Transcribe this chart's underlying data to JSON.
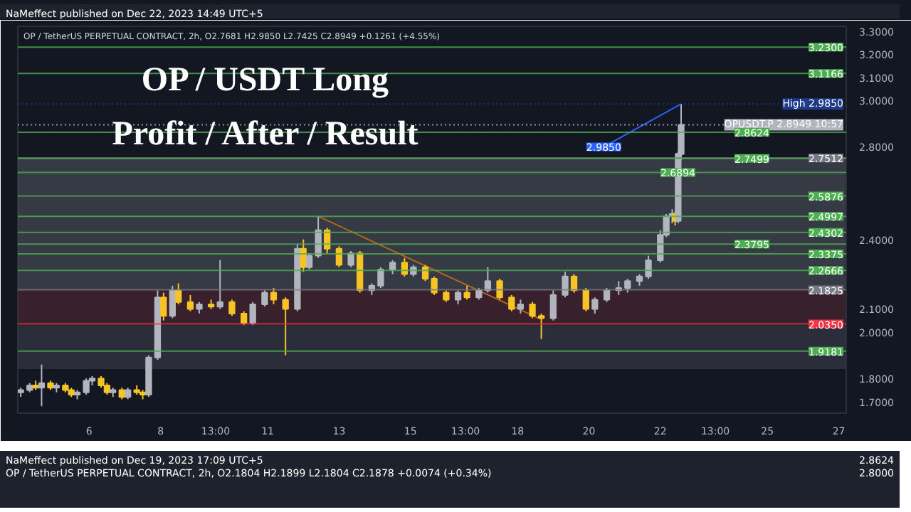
{
  "chart_data": {
    "type": "candlestick",
    "title": "OP / USDT Long",
    "subtitle": "Profit / After / Result",
    "x": [
      "2023-12-04T02:00",
      "2023-12-04T08:00",
      "2023-12-04T12:00",
      "2023-12-04T16:00",
      "2023-12-04T22:00",
      "2023-12-05T02:00",
      "2023-12-05T08:00",
      "2023-12-05T12:00",
      "2023-12-05T16:00",
      "2023-12-05T22:00",
      "2023-12-06T02:00",
      "2023-12-06T08:00",
      "2023-12-06T12:00",
      "2023-12-06T16:00",
      "2023-12-06T22:00",
      "2023-12-07T02:00",
      "2023-12-07T08:00",
      "2023-12-07T12:00",
      "2023-12-07T16:00",
      "2023-12-07T22:00",
      "2023-12-08T02:00",
      "2023-12-08T08:00",
      "2023-12-08T12:00",
      "2023-12-08T20:00",
      "2023-12-09T02:00",
      "2023-12-09T10:00",
      "2023-12-09T16:00",
      "2023-12-10T00:00",
      "2023-12-10T08:00",
      "2023-12-10T14:00",
      "2023-12-10T22:00",
      "2023-12-11T04:00",
      "2023-12-11T12:00",
      "2023-12-11T20:00",
      "2023-12-12T00:00",
      "2023-12-12T04:00",
      "2023-12-12T10:00",
      "2023-12-12T16:00",
      "2023-12-13T00:00",
      "2023-12-13T08:00",
      "2023-12-13T14:00",
      "2023-12-13T22:00",
      "2023-12-14T04:00",
      "2023-12-14T12:00",
      "2023-12-14T20:00",
      "2023-12-15T02:00",
      "2023-12-15T10:00",
      "2023-12-15T16:00",
      "2023-12-16T00:00",
      "2023-12-16T08:00",
      "2023-12-16T14:00",
      "2023-12-16T22:00",
      "2023-12-17T04:00",
      "2023-12-17T12:00",
      "2023-12-17T20:00",
      "2023-12-18T02:00",
      "2023-12-18T10:00",
      "2023-12-18T16:00",
      "2023-12-19T00:00",
      "2023-12-19T08:00",
      "2023-12-19T14:00",
      "2023-12-19T22:00",
      "2023-12-20T04:00",
      "2023-12-20T12:00",
      "2023-12-20T20:00",
      "2023-12-21T02:00",
      "2023-12-21T10:00",
      "2023-12-21T16:00",
      "2023-12-22T00:00",
      "2023-12-22T04:00",
      "2023-12-22T08:00",
      "2023-12-22T10:00",
      "2023-12-22T12:00",
      "2023-12-22T14:00"
    ],
    "ohlc": [
      [
        1.74,
        1.76,
        1.72,
        1.75
      ],
      [
        1.75,
        1.78,
        1.74,
        1.77
      ],
      [
        1.77,
        1.79,
        1.75,
        1.76
      ],
      [
        1.76,
        1.86,
        1.68,
        1.78
      ],
      [
        1.78,
        1.79,
        1.75,
        1.76
      ],
      [
        1.76,
        1.78,
        1.74,
        1.77
      ],
      [
        1.77,
        1.78,
        1.74,
        1.75
      ],
      [
        1.75,
        1.76,
        1.72,
        1.73
      ],
      [
        1.73,
        1.75,
        1.71,
        1.74
      ],
      [
        1.74,
        1.8,
        1.73,
        1.79
      ],
      [
        1.79,
        1.81,
        1.77,
        1.8
      ],
      [
        1.8,
        1.81,
        1.76,
        1.77
      ],
      [
        1.77,
        1.78,
        1.73,
        1.74
      ],
      [
        1.74,
        1.76,
        1.72,
        1.75
      ],
      [
        1.75,
        1.76,
        1.71,
        1.72
      ],
      [
        1.72,
        1.76,
        1.71,
        1.75
      ],
      [
        1.75,
        1.77,
        1.73,
        1.74
      ],
      [
        1.74,
        1.75,
        1.71,
        1.73
      ],
      [
        1.73,
        1.9,
        1.72,
        1.89
      ],
      [
        1.89,
        2.18,
        1.88,
        2.15
      ],
      [
        2.15,
        2.17,
        2.05,
        2.07
      ],
      [
        2.07,
        2.2,
        2.06,
        2.18
      ],
      [
        2.18,
        2.21,
        2.12,
        2.13
      ],
      [
        2.13,
        2.16,
        2.09,
        2.1
      ],
      [
        2.1,
        2.13,
        2.08,
        2.12
      ],
      [
        2.12,
        2.14,
        2.1,
        2.11
      ],
      [
        2.11,
        2.31,
        2.1,
        2.13
      ],
      [
        2.13,
        2.14,
        2.07,
        2.08
      ],
      [
        2.08,
        2.09,
        2.03,
        2.04
      ],
      [
        2.04,
        2.13,
        2.03,
        2.12
      ],
      [
        2.12,
        2.18,
        2.11,
        2.17
      ],
      [
        2.17,
        2.19,
        2.12,
        2.14
      ],
      [
        2.14,
        2.15,
        1.9,
        2.1
      ],
      [
        2.1,
        2.38,
        2.09,
        2.36
      ],
      [
        2.36,
        2.4,
        2.26,
        2.28
      ],
      [
        2.28,
        2.34,
        2.27,
        2.33
      ],
      [
        2.33,
        2.5,
        2.32,
        2.44
      ],
      [
        2.44,
        2.45,
        2.34,
        2.36
      ],
      [
        2.36,
        2.37,
        2.28,
        2.29
      ],
      [
        2.29,
        2.35,
        2.28,
        2.34
      ],
      [
        2.34,
        2.35,
        2.17,
        2.18
      ],
      [
        2.18,
        2.21,
        2.16,
        2.2
      ],
      [
        2.2,
        2.28,
        2.19,
        2.27
      ],
      [
        2.27,
        2.31,
        2.25,
        2.3
      ],
      [
        2.3,
        2.32,
        2.24,
        2.25
      ],
      [
        2.25,
        2.29,
        2.24,
        2.28
      ],
      [
        2.28,
        2.29,
        2.22,
        2.23
      ],
      [
        2.23,
        2.24,
        2.16,
        2.17
      ],
      [
        2.17,
        2.18,
        2.13,
        2.14
      ],
      [
        2.14,
        2.18,
        2.12,
        2.17
      ],
      [
        2.17,
        2.2,
        2.14,
        2.15
      ],
      [
        2.15,
        2.19,
        2.14,
        2.18
      ],
      [
        2.18,
        2.28,
        2.17,
        2.22
      ],
      [
        2.22,
        2.23,
        2.14,
        2.15
      ],
      [
        2.15,
        2.16,
        2.09,
        2.1
      ],
      [
        2.1,
        2.14,
        2.08,
        2.12
      ],
      [
        2.12,
        2.13,
        2.06,
        2.07
      ],
      [
        2.07,
        2.08,
        1.97,
        2.06
      ],
      [
        2.06,
        2.18,
        2.05,
        2.16
      ],
      [
        2.16,
        2.26,
        2.15,
        2.24
      ],
      [
        2.24,
        2.25,
        2.17,
        2.18
      ],
      [
        2.18,
        2.19,
        2.09,
        2.1
      ],
      [
        2.1,
        2.15,
        2.08,
        2.14
      ],
      [
        2.14,
        2.19,
        2.13,
        2.18
      ],
      [
        2.18,
        2.22,
        2.16,
        2.19
      ],
      [
        2.19,
        2.23,
        2.17,
        2.22
      ],
      [
        2.22,
        2.25,
        2.2,
        2.24
      ],
      [
        2.24,
        2.33,
        2.23,
        2.31
      ],
      [
        2.31,
        2.44,
        2.3,
        2.42
      ],
      [
        2.42,
        2.51,
        2.41,
        2.5
      ],
      [
        2.5,
        2.53,
        2.47,
        2.51
      ],
      [
        2.51,
        2.52,
        2.46,
        2.48
      ],
      [
        2.48,
        2.78,
        2.47,
        2.77
      ],
      [
        2.7681,
        2.985,
        2.7425,
        2.8949
      ]
    ],
    "series": [
      {
        "type": "line",
        "x": [
          "2023-12-12T10:00",
          "2023-12-18T14:00"
        ],
        "values": [
          2.5,
          2.06
        ],
        "color": "#b5651d"
      },
      {
        "type": "line",
        "x": [
          "2023-12-20T10:00",
          "2023-12-22T14:00"
        ],
        "values": [
          2.8,
          2.985
        ],
        "color": "#2962ff"
      }
    ],
    "xlim": [
      "2023-12-04T00:00",
      "2023-12-27T05:00"
    ],
    "ylim": [
      1.65,
      3.32
    ],
    "xticks": [
      {
        "value": "2023-12-06",
        "label": "6"
      },
      {
        "value": "2023-12-08",
        "label": "8"
      },
      {
        "value": "2023-12-09T13:00",
        "label": "13:00"
      },
      {
        "value": "2023-12-11",
        "label": "11"
      },
      {
        "value": "2023-12-13",
        "label": "13"
      },
      {
        "value": "2023-12-15",
        "label": "15"
      },
      {
        "value": "2023-12-16T13:00",
        "label": "13:00"
      },
      {
        "value": "2023-12-18",
        "label": "18"
      },
      {
        "value": "2023-12-20",
        "label": "20"
      },
      {
        "value": "2023-12-22",
        "label": "22"
      },
      {
        "value": "2023-12-23T13:00",
        "label": "13:00"
      },
      {
        "value": "2023-12-25",
        "label": "25"
      },
      {
        "value": "2023-12-27",
        "label": "27"
      }
    ],
    "yticks": [
      {
        "value": 1.7,
        "label": "1.7000"
      },
      {
        "value": 1.8,
        "label": "1.8000"
      },
      {
        "value": 2.0,
        "label": "2.0000"
      },
      {
        "value": 2.1,
        "label": "2.1000"
      },
      {
        "value": 2.4,
        "label": "2.4000"
      },
      {
        "value": 2.8,
        "label": "2.8000"
      },
      {
        "value": 3.0,
        "label": "3.0000"
      },
      {
        "value": 3.1,
        "label": "3.1000"
      },
      {
        "value": 3.2,
        "label": "3.2000"
      },
      {
        "value": 3.3,
        "label": "3.3000"
      }
    ],
    "ref_lines": [
      {
        "axis": "y",
        "value": 3.23,
        "label": "3.2300",
        "color": "#4caf50"
      },
      {
        "axis": "y",
        "value": 3.1166,
        "label": "3.1166",
        "color": "#4caf50"
      },
      {
        "axis": "y",
        "value": 2.985,
        "label": "High 2.9850",
        "color": "#1e3a8a",
        "line_style": "dotted"
      },
      {
        "axis": "y",
        "value": 2.8949,
        "label": "OPUSDT.P 2.8949 10:57",
        "color": "#b2b5be",
        "line_style": "dotted"
      },
      {
        "axis": "y",
        "value": 2.8624,
        "label": "2.8624",
        "color": "#4caf50"
      },
      {
        "axis": "y",
        "value": 2.7512,
        "label": "2.7512",
        "color": "#787b86"
      },
      {
        "axis": "y",
        "value": 2.7499,
        "label": "2.7499",
        "color": "#4caf50"
      },
      {
        "axis": "y",
        "value": 2.6894,
        "label": "2.6894",
        "color": "#4caf50"
      },
      {
        "axis": "y",
        "value": 2.5876,
        "label": "2.5876",
        "color": "#4caf50"
      },
      {
        "axis": "y",
        "value": 2.4997,
        "label": "2.4997",
        "color": "#4caf50"
      },
      {
        "axis": "y",
        "value": 2.4302,
        "label": "2.4302",
        "color": "#4caf50"
      },
      {
        "axis": "y",
        "value": 2.3795,
        "label": "2.3795",
        "color": "#4caf50"
      },
      {
        "axis": "y",
        "value": 2.3375,
        "label": "2.3375",
        "color": "#4caf50"
      },
      {
        "axis": "y",
        "value": 2.2666,
        "label": "2.2666",
        "color": "#4caf50"
      },
      {
        "axis": "y",
        "value": 2.1825,
        "label": "2.1825",
        "color": "#787b86"
      },
      {
        "axis": "y",
        "value": 2.035,
        "label": "2.0350",
        "color": "#f23645"
      },
      {
        "axis": "y",
        "value": 1.9181,
        "label": "1.9181",
        "color": "#4caf50"
      }
    ],
    "bands": [
      {
        "axis": "y",
        "from": 1.84,
        "to": 2.03,
        "color": "#434651"
      },
      {
        "axis": "y",
        "from": 2.035,
        "to": 2.1825,
        "color": "#5d2a35"
      },
      {
        "axis": "y",
        "from": 2.1825,
        "to": 2.7512,
        "color": "#5a5d66"
      }
    ],
    "annotations": [
      "NaMeffect published on Dec 22, 2023 14:49 UTC+5",
      "OP / TetherUS PERPETUAL CONTRACT, 2h, O2.7681 H2.9850 L2.7425 C2.8949 +0.1261 (+4.55%)",
      {
        "text": "2.9850",
        "x": "2023-12-20T10:00",
        "y": 2.8
      },
      "NaMeffect published on Dec 19, 2023 17:09 UTC+5",
      "OP / TetherUS PERPETUAL CONTRACT, 2h, O2.1804 H2.1899 L2.1804 C2.1878 +0.0074 (+0.34%)",
      "2.8624",
      "2.8000"
    ]
  }
}
